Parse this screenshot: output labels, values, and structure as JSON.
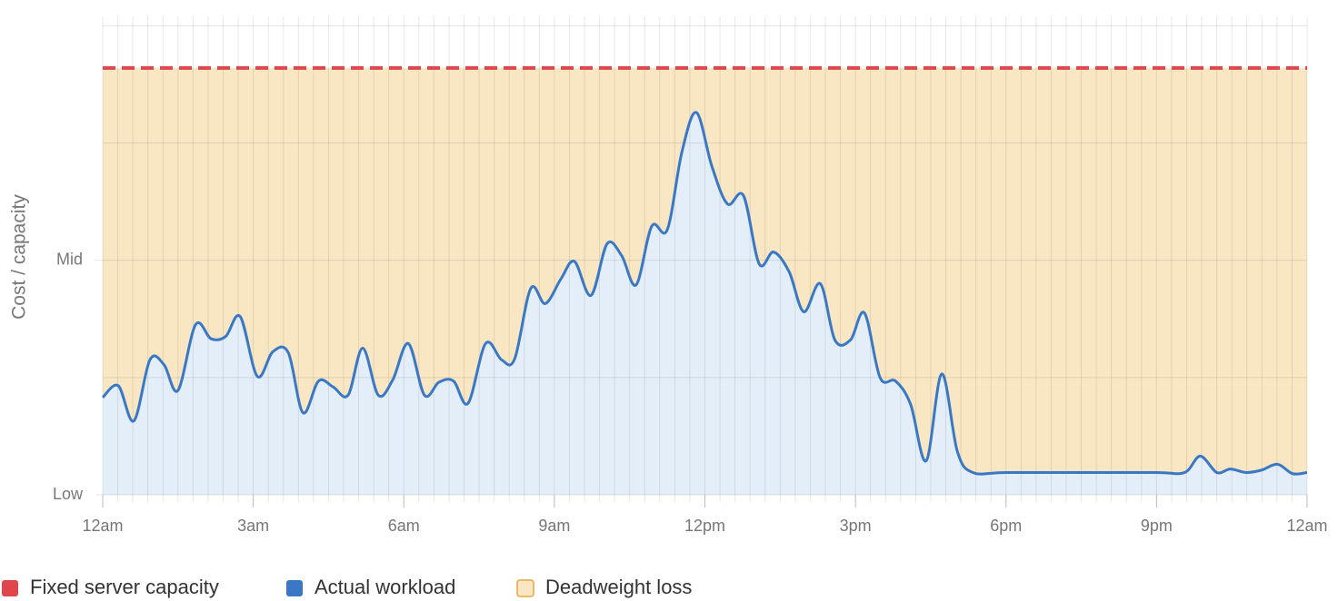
{
  "chart_data": {
    "type": "area",
    "y_label": "Cost / capacity",
    "xlim": [
      0,
      24
    ],
    "xticks": [
      {
        "value": 0,
        "label": "12am"
      },
      {
        "value": 3,
        "label": "3am"
      },
      {
        "value": 6,
        "label": "6am"
      },
      {
        "value": 9,
        "label": "9am"
      },
      {
        "value": 12,
        "label": "12pm"
      },
      {
        "value": 15,
        "label": "3pm"
      },
      {
        "value": 18,
        "label": "6pm"
      },
      {
        "value": 21,
        "label": "9pm"
      },
      {
        "value": 24,
        "label": "12am"
      }
    ],
    "x_minor_step": 0.3,
    "ylim": [
      0,
      4.08
    ],
    "yticks": [
      {
        "value": 0,
        "label": "Low"
      },
      {
        "value": 1,
        "label": null
      },
      {
        "value": 2,
        "label": "Mid"
      },
      {
        "value": 3,
        "label": null
      },
      {
        "value": 4,
        "label": null
      }
    ],
    "grid": true,
    "x": [
      0,
      0.31,
      0.62,
      0.94,
      1.22,
      1.5,
      1.85,
      2.16,
      2.45,
      2.74,
      3.08,
      3.39,
      3.7,
      3.99,
      4.3,
      4.59,
      4.89,
      5.18,
      5.49,
      5.78,
      6.09,
      6.41,
      6.7,
      6.99,
      7.28,
      7.63,
      7.95,
      8.21,
      8.53,
      8.82,
      9.13,
      9.4,
      9.73,
      10.05,
      10.34,
      10.63,
      10.94,
      11.25,
      11.54,
      11.83,
      12.14,
      12.45,
      12.77,
      13.08,
      13.37,
      13.68,
      13.97,
      14.3,
      14.59,
      14.9,
      15.18,
      15.49,
      15.8,
      16.1,
      16.41,
      16.72,
      17.03,
      17.34,
      18,
      19.5,
      21,
      21.56,
      21.87,
      22.2,
      22.47,
      22.78,
      23.09,
      23.41,
      23.71,
      24
    ],
    "series": [
      {
        "name": "Fixed server capacity",
        "color": "#e0474c",
        "value": 3.64
      },
      {
        "name": "Actual workload",
        "color": "#3a78c6",
        "fill": "#e4eef9",
        "values": [
          0.83,
          0.93,
          0.63,
          1.15,
          1.11,
          0.89,
          1.45,
          1.33,
          1.35,
          1.52,
          1.01,
          1.22,
          1.21,
          0.7,
          0.97,
          0.92,
          0.85,
          1.25,
          0.85,
          0.98,
          1.29,
          0.85,
          0.96,
          0.97,
          0.78,
          1.29,
          1.15,
          1.16,
          1.76,
          1.63,
          1.84,
          1.99,
          1.7,
          2.14,
          2.04,
          1.79,
          2.29,
          2.26,
          2.92,
          3.26,
          2.8,
          2.48,
          2.55,
          1.97,
          2.07,
          1.9,
          1.56,
          1.8,
          1.32,
          1.32,
          1.55,
          1.0,
          0.97,
          0.77,
          0.29,
          1.03,
          0.37,
          0.19,
          0.19,
          0.19,
          0.19,
          0.19,
          0.33,
          0.19,
          0.22,
          0.19,
          0.21,
          0.26,
          0.18,
          0.19
        ]
      },
      {
        "name": "Deadweight loss",
        "color": "#f9e6c3",
        "border": "#e9a53c"
      }
    ]
  }
}
